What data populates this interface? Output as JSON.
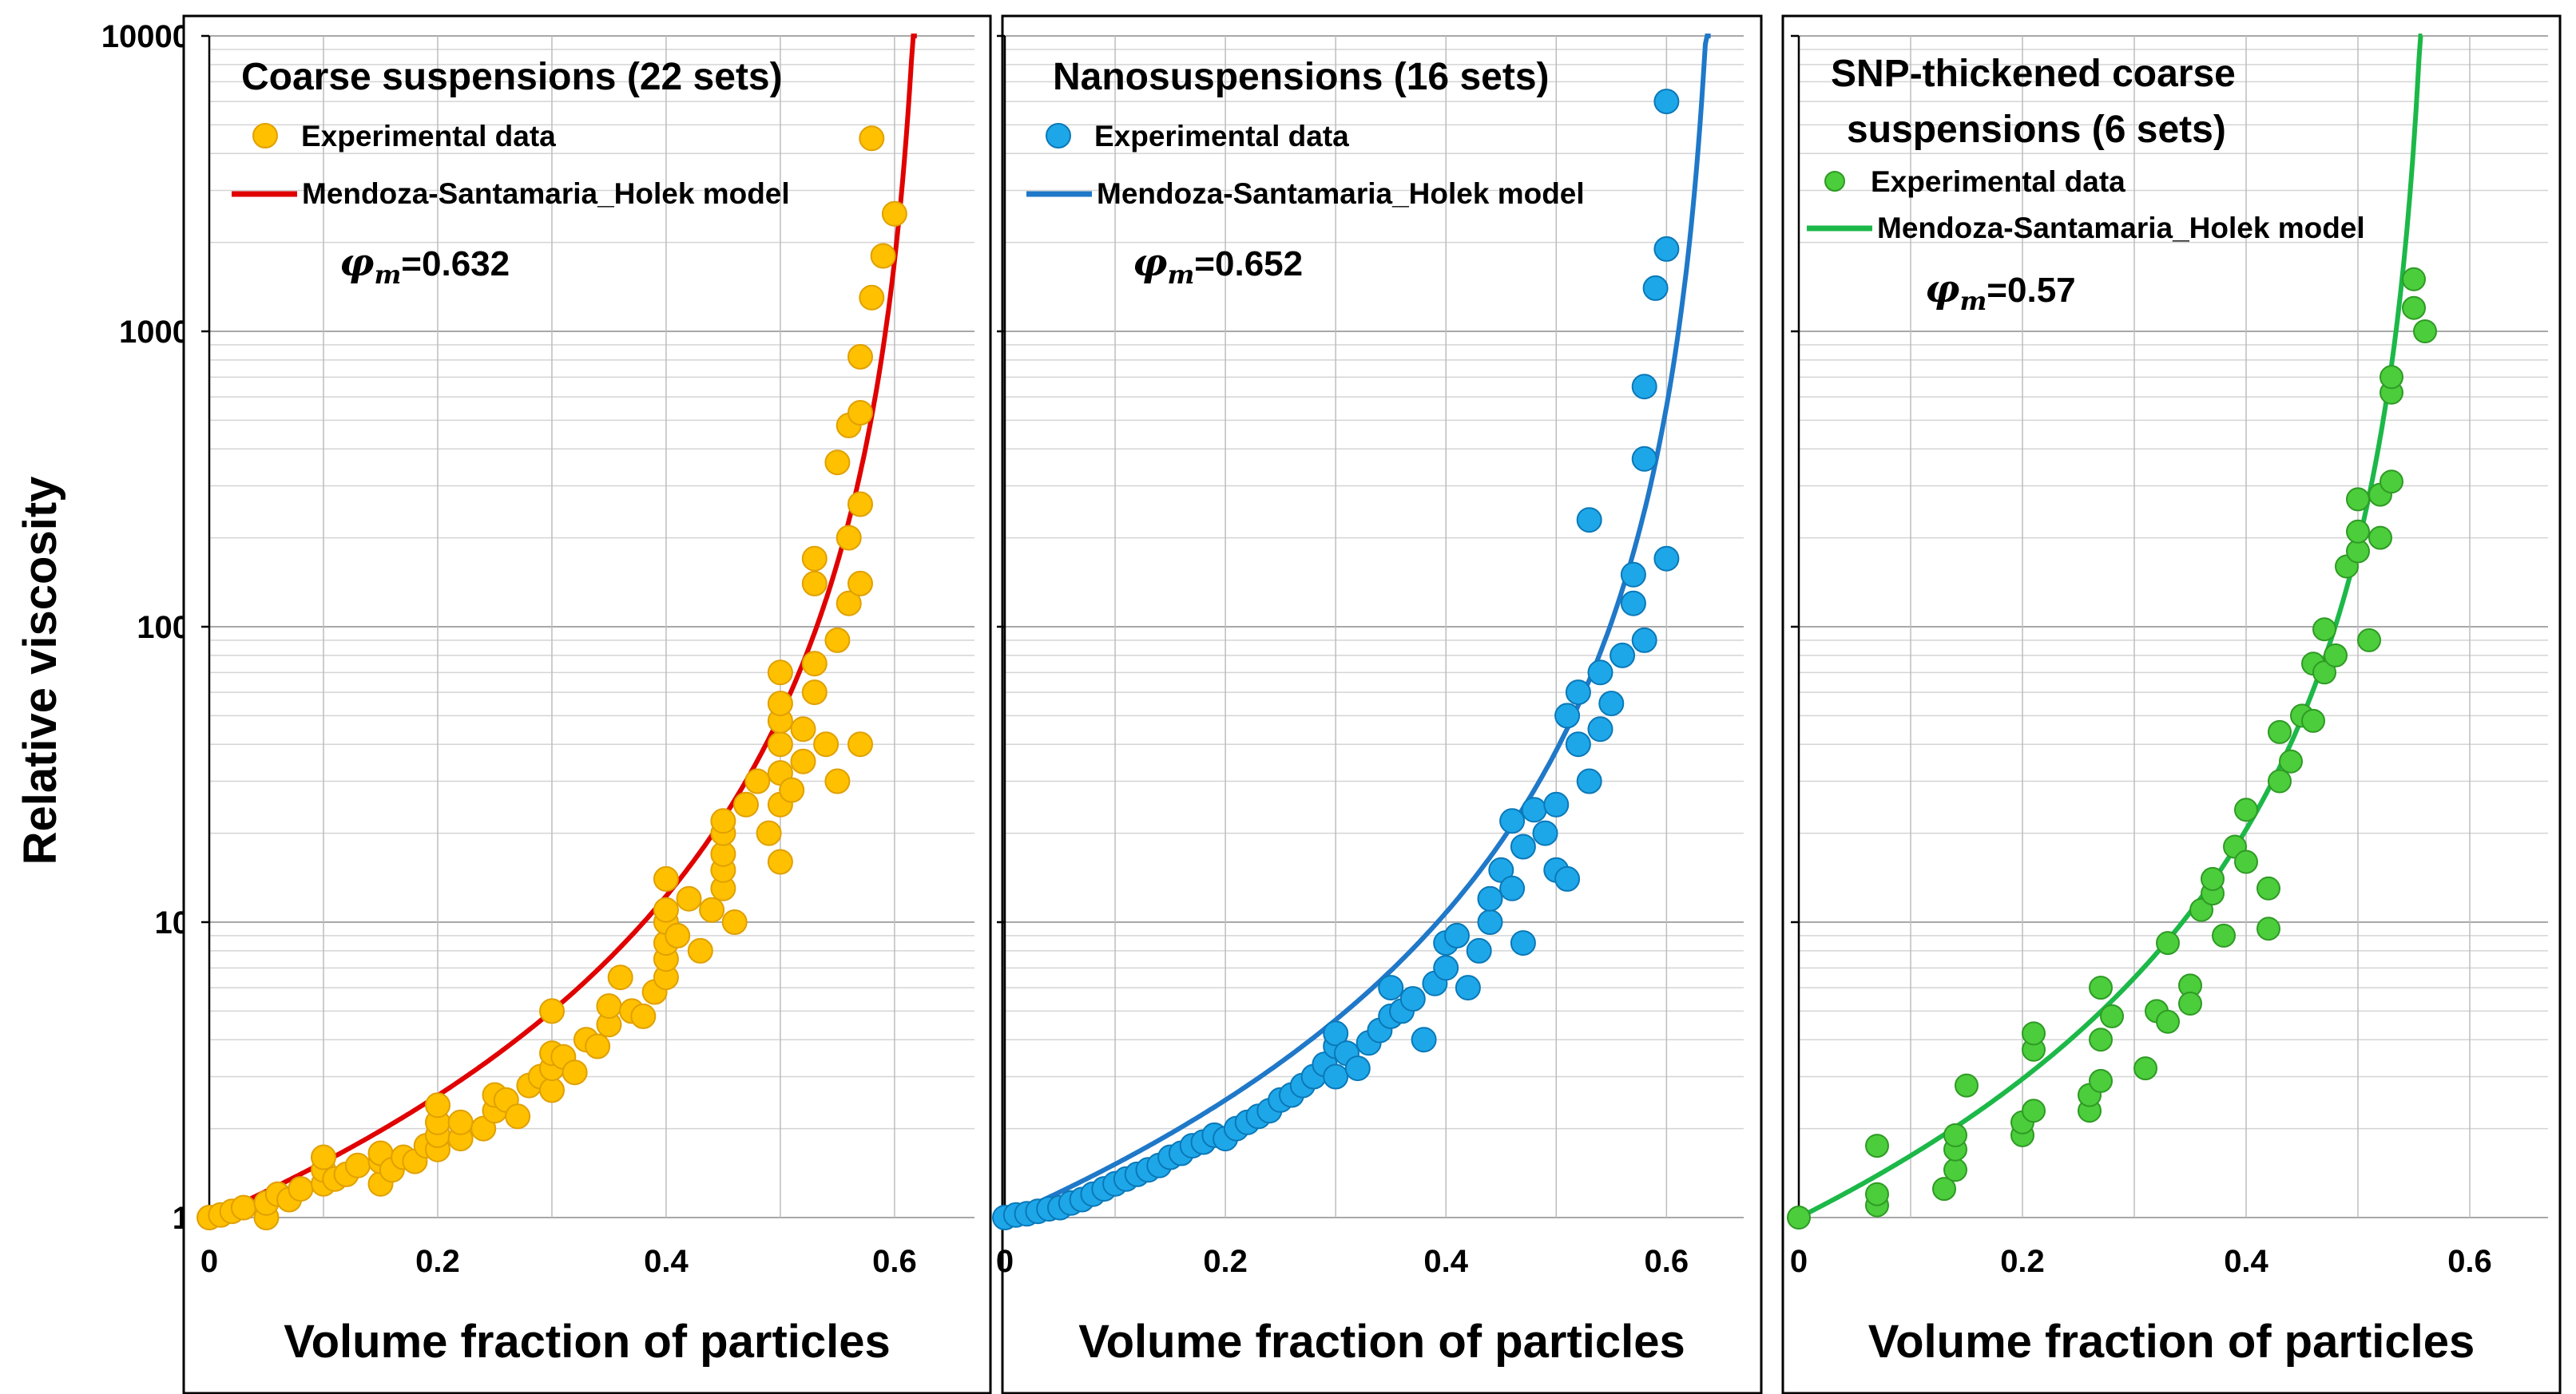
{
  "figure": {
    "ylabel": "Relative viscosity",
    "y_ticks": [
      "10000",
      "1000",
      "100",
      "10",
      "1"
    ]
  },
  "chart_data": [
    {
      "type": "scatter",
      "title_lines": [
        "Coarse suspensions (22 sets)"
      ],
      "xlabel": "Volume fraction of particles",
      "ylabel": "Relative viscosity",
      "x_ticks": [
        "0",
        "0.2",
        "0.4",
        "0.6"
      ],
      "xlim": [
        0,
        0.67
      ],
      "ylim": [
        1,
        10000
      ],
      "yscale": "log",
      "grid": true,
      "legend_position": "top-left",
      "phi_label": "=0.632",
      "colors": {
        "points": "#ffc000",
        "point_edge": "#e0a000",
        "line": "#e00000"
      },
      "series": [
        {
          "name": "Experimental data",
          "kind": "points",
          "points": [
            [
              0.0,
              1.0
            ],
            [
              0.01,
              1.02
            ],
            [
              0.02,
              1.05
            ],
            [
              0.03,
              1.08
            ],
            [
              0.05,
              1.0
            ],
            [
              0.05,
              1.12
            ],
            [
              0.06,
              1.2
            ],
            [
              0.07,
              1.15
            ],
            [
              0.08,
              1.25
            ],
            [
              0.1,
              1.3
            ],
            [
              0.1,
              1.45
            ],
            [
              0.1,
              1.6
            ],
            [
              0.11,
              1.35
            ],
            [
              0.12,
              1.4
            ],
            [
              0.13,
              1.5
            ],
            [
              0.15,
              1.3
            ],
            [
              0.15,
              1.55
            ],
            [
              0.15,
              1.65
            ],
            [
              0.16,
              1.45
            ],
            [
              0.17,
              1.6
            ],
            [
              0.18,
              1.55
            ],
            [
              0.19,
              1.75
            ],
            [
              0.2,
              1.7
            ],
            [
              0.2,
              1.9
            ],
            [
              0.2,
              2.1
            ],
            [
              0.2,
              2.4
            ],
            [
              0.22,
              1.85
            ],
            [
              0.22,
              2.1
            ],
            [
              0.24,
              2.0
            ],
            [
              0.25,
              2.3
            ],
            [
              0.25,
              2.6
            ],
            [
              0.26,
              2.5
            ],
            [
              0.27,
              2.2
            ],
            [
              0.28,
              2.8
            ],
            [
              0.29,
              3.0
            ],
            [
              0.3,
              2.7
            ],
            [
              0.3,
              3.2
            ],
            [
              0.3,
              3.6
            ],
            [
              0.3,
              5.0
            ],
            [
              0.31,
              3.5
            ],
            [
              0.32,
              3.1
            ],
            [
              0.33,
              4.0
            ],
            [
              0.34,
              3.8
            ],
            [
              0.35,
              4.5
            ],
            [
              0.35,
              5.2
            ],
            [
              0.36,
              6.5
            ],
            [
              0.37,
              5.0
            ],
            [
              0.38,
              4.8
            ],
            [
              0.39,
              5.8
            ],
            [
              0.4,
              6.5
            ],
            [
              0.4,
              7.5
            ],
            [
              0.4,
              8.5
            ],
            [
              0.4,
              10.0
            ],
            [
              0.4,
              11.0
            ],
            [
              0.4,
              14.0
            ],
            [
              0.41,
              9.0
            ],
            [
              0.42,
              12.0
            ],
            [
              0.43,
              8.0
            ],
            [
              0.44,
              11.0
            ],
            [
              0.45,
              13.0
            ],
            [
              0.45,
              15.0
            ],
            [
              0.45,
              17.0
            ],
            [
              0.45,
              20.0
            ],
            [
              0.45,
              22.0
            ],
            [
              0.46,
              10.0
            ],
            [
              0.47,
              25.0
            ],
            [
              0.48,
              30.0
            ],
            [
              0.49,
              20.0
            ],
            [
              0.5,
              16.0
            ],
            [
              0.5,
              25.0
            ],
            [
              0.5,
              32.0
            ],
            [
              0.5,
              40.0
            ],
            [
              0.5,
              48.0
            ],
            [
              0.5,
              55.0
            ],
            [
              0.5,
              70.0
            ],
            [
              0.51,
              28.0
            ],
            [
              0.52,
              35.0
            ],
            [
              0.52,
              45.0
            ],
            [
              0.53,
              60.0
            ],
            [
              0.53,
              75.0
            ],
            [
              0.53,
              140.0
            ],
            [
              0.53,
              170.0
            ],
            [
              0.54,
              40.0
            ],
            [
              0.55,
              30.0
            ],
            [
              0.55,
              90.0
            ],
            [
              0.55,
              360.0
            ],
            [
              0.56,
              120.0
            ],
            [
              0.56,
              200.0
            ],
            [
              0.56,
              480.0
            ],
            [
              0.57,
              40.0
            ],
            [
              0.57,
              140.0
            ],
            [
              0.57,
              260.0
            ],
            [
              0.57,
              530.0
            ],
            [
              0.57,
              820.0
            ],
            [
              0.58,
              1300.0
            ],
            [
              0.58,
              4500.0
            ],
            [
              0.59,
              1800.0
            ],
            [
              0.6,
              2500.0
            ]
          ]
        },
        {
          "name": "Mendoza-Santamaria_Holek model",
          "kind": "curve",
          "phi_m": 0.632
        }
      ]
    },
    {
      "type": "scatter",
      "title_lines": [
        "Nanosuspensions (16 sets)"
      ],
      "xlabel": "Volume fraction of particles",
      "ylabel": "Relative viscosity",
      "x_ticks": [
        "0",
        "0.2",
        "0.4",
        "0.6"
      ],
      "xlim": [
        0,
        0.67
      ],
      "ylim": [
        1,
        10000
      ],
      "yscale": "log",
      "grid": true,
      "legend_position": "top-left",
      "phi_label": "=0.652",
      "colors": {
        "points": "#1ea7e8",
        "point_edge": "#0a78b8",
        "line": "#1f78c8"
      },
      "series": [
        {
          "name": "Experimental data",
          "kind": "points",
          "points": [
            [
              0.0,
              1.0
            ],
            [
              0.01,
              1.02
            ],
            [
              0.02,
              1.03
            ],
            [
              0.03,
              1.05
            ],
            [
              0.04,
              1.07
            ],
            [
              0.05,
              1.08
            ],
            [
              0.06,
              1.12
            ],
            [
              0.07,
              1.15
            ],
            [
              0.08,
              1.2
            ],
            [
              0.09,
              1.25
            ],
            [
              0.1,
              1.3
            ],
            [
              0.11,
              1.35
            ],
            [
              0.12,
              1.4
            ],
            [
              0.13,
              1.45
            ],
            [
              0.14,
              1.5
            ],
            [
              0.15,
              1.6
            ],
            [
              0.16,
              1.65
            ],
            [
              0.17,
              1.75
            ],
            [
              0.18,
              1.8
            ],
            [
              0.19,
              1.9
            ],
            [
              0.2,
              1.85
            ],
            [
              0.21,
              2.0
            ],
            [
              0.22,
              2.1
            ],
            [
              0.23,
              2.2
            ],
            [
              0.24,
              2.3
            ],
            [
              0.25,
              2.5
            ],
            [
              0.26,
              2.6
            ],
            [
              0.27,
              2.8
            ],
            [
              0.28,
              3.0
            ],
            [
              0.29,
              3.3
            ],
            [
              0.3,
              3.0
            ],
            [
              0.3,
              3.8
            ],
            [
              0.3,
              4.2
            ],
            [
              0.31,
              3.6
            ],
            [
              0.32,
              3.2
            ],
            [
              0.33,
              3.9
            ],
            [
              0.34,
              4.3
            ],
            [
              0.35,
              4.8
            ],
            [
              0.35,
              6.0
            ],
            [
              0.36,
              5.0
            ],
            [
              0.37,
              5.5
            ],
            [
              0.38,
              4.0
            ],
            [
              0.39,
              6.2
            ],
            [
              0.4,
              7.0
            ],
            [
              0.4,
              8.5
            ],
            [
              0.41,
              9.0
            ],
            [
              0.42,
              6.0
            ],
            [
              0.43,
              8.0
            ],
            [
              0.44,
              10.0
            ],
            [
              0.44,
              12.0
            ],
            [
              0.45,
              15.0
            ],
            [
              0.46,
              13.0
            ],
            [
              0.46,
              22.0
            ],
            [
              0.47,
              8.5
            ],
            [
              0.47,
              18.0
            ],
            [
              0.48,
              24.0
            ],
            [
              0.49,
              20.0
            ],
            [
              0.5,
              15.0
            ],
            [
              0.5,
              25.0
            ],
            [
              0.51,
              50.0
            ],
            [
              0.51,
              14.0
            ],
            [
              0.52,
              40.0
            ],
            [
              0.52,
              60.0
            ],
            [
              0.53,
              30.0
            ],
            [
              0.53,
              230.0
            ],
            [
              0.54,
              45.0
            ],
            [
              0.54,
              70.0
            ],
            [
              0.55,
              55.0
            ],
            [
              0.56,
              80.0
            ],
            [
              0.57,
              120.0
            ],
            [
              0.57,
              150.0
            ],
            [
              0.58,
              90.0
            ],
            [
              0.58,
              370.0
            ],
            [
              0.58,
              650.0
            ],
            [
              0.59,
              1400.0
            ],
            [
              0.6,
              170.0
            ],
            [
              0.6,
              1900.0
            ],
            [
              0.6,
              6000.0
            ]
          ]
        },
        {
          "name": "Mendoza-Santamaria_Holek model",
          "kind": "curve",
          "phi_m": 0.652
        }
      ]
    },
    {
      "type": "scatter",
      "title_lines": [
        "SNP-thickened coarse",
        "suspensions (6 sets)"
      ],
      "xlabel": "Volume fraction of particles",
      "ylabel": "Relative viscosity",
      "x_ticks": [
        "0",
        "0.2",
        "0.4",
        "0.6"
      ],
      "xlim": [
        0,
        0.67
      ],
      "ylim": [
        1,
        10000
      ],
      "yscale": "log",
      "grid": true,
      "legend_position": "top-left",
      "phi_label": "=0.57",
      "colors": {
        "points": "#4ccd3c",
        "point_edge": "#2e9a24",
        "line": "#1cb848"
      },
      "series": [
        {
          "name": "Experimental data",
          "kind": "points",
          "points": [
            [
              0.0,
              1.0
            ],
            [
              0.07,
              1.1
            ],
            [
              0.07,
              1.2
            ],
            [
              0.07,
              1.75
            ],
            [
              0.13,
              1.25
            ],
            [
              0.14,
              1.45
            ],
            [
              0.14,
              1.7
            ],
            [
              0.14,
              1.9
            ],
            [
              0.15,
              2.8
            ],
            [
              0.2,
              1.9
            ],
            [
              0.2,
              2.1
            ],
            [
              0.21,
              2.3
            ],
            [
              0.21,
              3.7
            ],
            [
              0.21,
              4.2
            ],
            [
              0.26,
              2.3
            ],
            [
              0.26,
              2.6
            ],
            [
              0.27,
              2.9
            ],
            [
              0.27,
              4.0
            ],
            [
              0.27,
              6.0
            ],
            [
              0.28,
              4.8
            ],
            [
              0.31,
              3.2
            ],
            [
              0.32,
              5.0
            ],
            [
              0.33,
              4.6
            ],
            [
              0.33,
              8.5
            ],
            [
              0.35,
              6.1
            ],
            [
              0.35,
              5.3
            ],
            [
              0.36,
              11.0
            ],
            [
              0.37,
              12.5
            ],
            [
              0.37,
              14.0
            ],
            [
              0.38,
              9.0
            ],
            [
              0.39,
              18.0
            ],
            [
              0.4,
              16.0
            ],
            [
              0.4,
              24.0
            ],
            [
              0.42,
              9.5
            ],
            [
              0.42,
              13.0
            ],
            [
              0.43,
              30.0
            ],
            [
              0.43,
              44.0
            ],
            [
              0.44,
              35.0
            ],
            [
              0.45,
              50.0
            ],
            [
              0.46,
              48.0
            ],
            [
              0.46,
              75.0
            ],
            [
              0.47,
              70.0
            ],
            [
              0.47,
              98.0
            ],
            [
              0.48,
              80.0
            ],
            [
              0.49,
              160.0
            ],
            [
              0.5,
              180.0
            ],
            [
              0.5,
              210.0
            ],
            [
              0.5,
              270.0
            ],
            [
              0.51,
              90.0
            ],
            [
              0.52,
              200.0
            ],
            [
              0.52,
              280.0
            ],
            [
              0.53,
              310.0
            ],
            [
              0.53,
              620.0
            ],
            [
              0.53,
              700.0
            ],
            [
              0.55,
              1500.0
            ],
            [
              0.55,
              1200.0
            ],
            [
              0.56,
              1000.0
            ]
          ]
        },
        {
          "name": "Mendoza-Santamaria_Holek model",
          "kind": "curve",
          "phi_m": 0.57
        }
      ]
    }
  ]
}
